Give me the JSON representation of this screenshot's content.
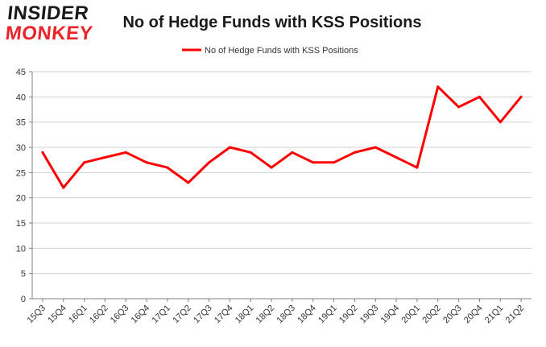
{
  "logo": {
    "line1": "INSIDER",
    "line2": "MONKEY"
  },
  "chart_data": {
    "type": "line",
    "title": "No of Hedge Funds with KSS Positions",
    "xlabel": "",
    "ylabel": "",
    "categories": [
      "15Q3",
      "15Q4",
      "16Q1",
      "16Q2",
      "16Q3",
      "16Q4",
      "17Q1",
      "17Q2",
      "17Q3",
      "17Q4",
      "18Q1",
      "18Q2",
      "18Q3",
      "18Q4",
      "19Q1",
      "19Q2",
      "19Q3",
      "19Q4",
      "20Q1",
      "20Q2",
      "20Q3",
      "20Q4",
      "21Q1",
      "21Q2"
    ],
    "series": [
      {
        "name": "No of Hedge Funds with KSS Positions",
        "values": [
          29,
          22,
          27,
          28,
          29,
          27,
          26,
          23,
          27,
          30,
          29,
          26,
          29,
          27,
          27,
          29,
          30,
          28,
          26,
          42,
          38,
          40,
          35,
          40
        ]
      }
    ],
    "ylim": [
      0,
      45
    ],
    "yticks": [
      0,
      5,
      10,
      15,
      20,
      25,
      30,
      35,
      40,
      45
    ],
    "grid": true,
    "legend": "top-center",
    "colors": {
      "line": "#ff0000",
      "grid": "#d0d0d0",
      "axis": "#808080"
    }
  }
}
